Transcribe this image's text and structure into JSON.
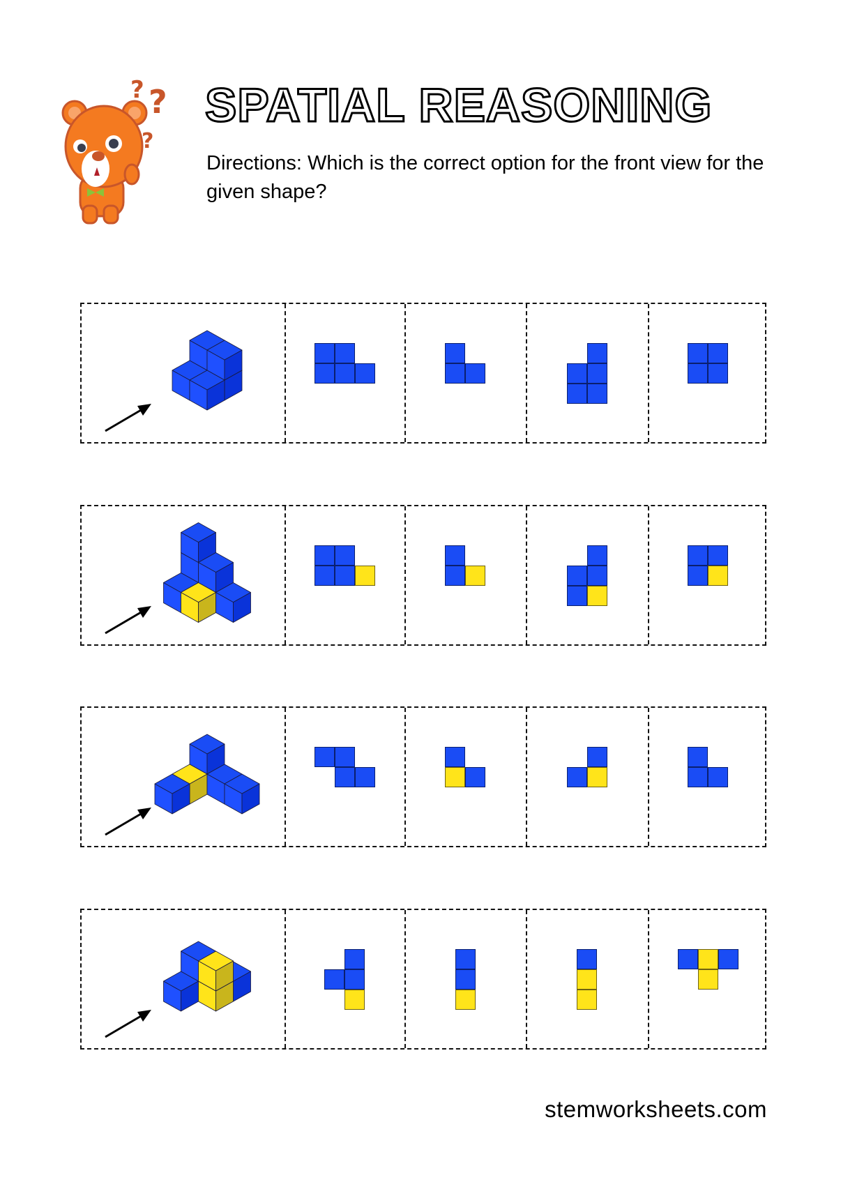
{
  "header": {
    "title": "SPATIAL REASONING",
    "directions": "Directions: Which is the correct option for the front view for the given shape?"
  },
  "colors": {
    "blue": "#1a4cf5",
    "yellow": "#ffe41a"
  },
  "questions": [
    {
      "cubes": [
        [
          0,
          0,
          0,
          "B"
        ],
        [
          0,
          0,
          1,
          "B"
        ],
        [
          1,
          0,
          0,
          "B"
        ],
        [
          1,
          0,
          1,
          "B"
        ],
        [
          0,
          1,
          0,
          "B"
        ],
        [
          1,
          1,
          0,
          "B"
        ]
      ],
      "options": [
        [
          "BB.",
          "BBB"
        ],
        [
          "B.",
          "BB"
        ],
        [
          ".B",
          "BB",
          "BB"
        ],
        [
          "BB",
          "BB"
        ]
      ]
    },
    {
      "cubes": [
        [
          0,
          0,
          0,
          "B"
        ],
        [
          0,
          0,
          1,
          "B"
        ],
        [
          0,
          0,
          2,
          "B"
        ],
        [
          1,
          0,
          0,
          "B"
        ],
        [
          1,
          0,
          1,
          "B"
        ],
        [
          2,
          0,
          0,
          "B"
        ],
        [
          0,
          1,
          0,
          "B"
        ],
        [
          1,
          1,
          0,
          "Y"
        ]
      ],
      "options": [
        [
          "BB.",
          "BBY"
        ],
        [
          "B.",
          "BY"
        ],
        [
          ".B",
          "BB",
          "BY"
        ],
        [
          "BB",
          "BY"
        ]
      ]
    },
    {
      "cubes": [
        [
          0,
          0,
          0,
          "B"
        ],
        [
          0,
          0,
          1,
          "B"
        ],
        [
          1,
          0,
          0,
          "B"
        ],
        [
          2,
          0,
          0,
          "B"
        ],
        [
          0,
          1,
          0,
          "Y"
        ],
        [
          0,
          2,
          0,
          "B"
        ]
      ],
      "options": [
        [
          "BB.",
          ".BB"
        ],
        [
          "B.",
          "YB"
        ],
        [
          ".B",
          "BY"
        ],
        [
          "B.",
          "BB"
        ]
      ]
    },
    {
      "cubes": [
        [
          1,
          -1,
          0,
          "B"
        ],
        [
          0,
          0,
          0,
          "B"
        ],
        [
          0,
          0,
          1,
          "B"
        ],
        [
          1,
          0,
          0,
          "Y"
        ],
        [
          1,
          0,
          1,
          "Y"
        ],
        [
          0,
          1,
          0,
          "B"
        ]
      ],
      "options": [
        [
          ".B",
          "BB",
          ".Y"
        ],
        [
          "B",
          "B",
          "Y"
        ],
        [
          "B",
          "Y",
          "Y"
        ],
        [
          "BYB",
          ".Y."
        ]
      ]
    }
  ],
  "icons": {
    "mascot": "thinking-bear-icon",
    "pointer": "view-arrow-icon"
  },
  "footer": {
    "site": "stemworksheets.com"
  }
}
